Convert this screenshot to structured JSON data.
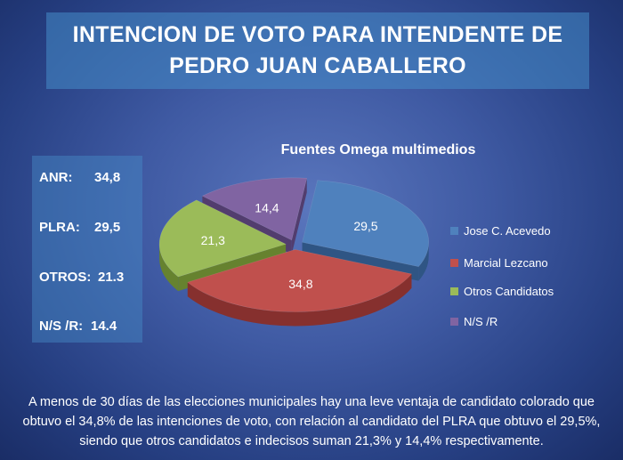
{
  "title_lines": [
    "INTENCION DE VOTO PARA INTENDENTE DE",
    "PEDRO JUAN CABALLERO"
  ],
  "stats": [
    {
      "label": "ANR:",
      "value": "34,8"
    },
    {
      "label": "PLRA:",
      "value": "29,5"
    },
    {
      "label": "OTROS:",
      "value": "21.3"
    },
    {
      "label": "N/S /R:",
      "value": "14.4"
    }
  ],
  "caption": "A menos de 30 días de las elecciones municipales hay una leve ventaja de candidato colorado que obtuvo el 34,8% de las intenciones de voto, con relación al candidato del PLRA que obtuvo el 29,5%, siendo que otros candidatos e indecisos suman 21,3% y 14,4% respectivamente.",
  "chart_data": {
    "type": "pie",
    "style": "3d-exploded",
    "title": "Fuentes Omega multimedios",
    "legend_position": "right",
    "slices": [
      {
        "name": "Jose C. Acevedo",
        "value": 29.5,
        "label": "29,5",
        "color": "#4f81bd",
        "dark": "#2f5584"
      },
      {
        "name": "Marcial Lezcano",
        "value": 34.8,
        "label": "34,8",
        "color": "#c0504d",
        "dark": "#86302e"
      },
      {
        "name": "Otros Candidatos",
        "value": 21.3,
        "label": "21,3",
        "color": "#9bbb59",
        "dark": "#66822f"
      },
      {
        "name": "N/S /R",
        "value": 14.4,
        "label": "14,4",
        "color": "#8064a2",
        "dark": "#523d6e"
      }
    ]
  }
}
